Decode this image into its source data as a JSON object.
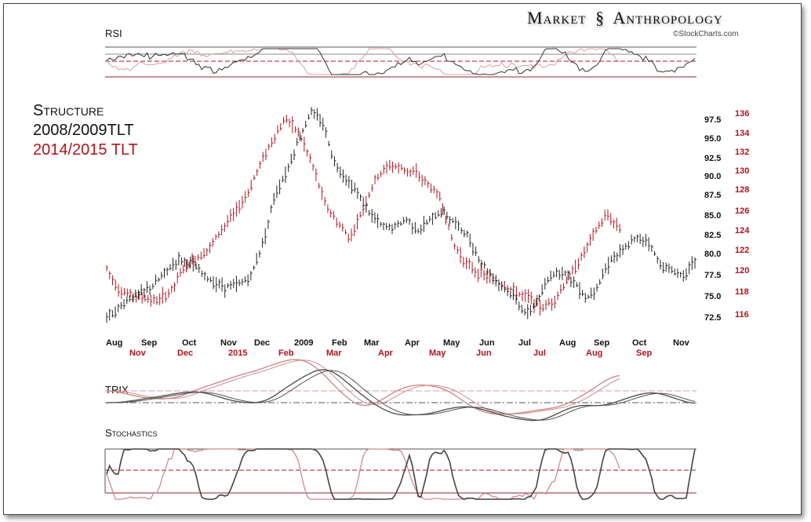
{
  "brand": {
    "title_left": "Market",
    "title_right": "Anthropology",
    "logo_icon": "dna-helix-icon",
    "copyright": "©StockCharts.com"
  },
  "legend": {
    "line1": "Structure",
    "line2": "2008/2009TLT",
    "line3": "2014/2015 TLT"
  },
  "panels": {
    "rsi": "RSI",
    "trix": "TRIX",
    "stoch": "Stochastics"
  },
  "colors": {
    "series_2008": "#222222",
    "series_2014": "#b0141c",
    "grid": "#555555"
  },
  "chart_data": {
    "type": "bar",
    "title": "Structure 2008/2009TLT vs 2014/2015 TLT",
    "x_ticks_2008": [
      "Aug",
      "Sep",
      "Oct",
      "Nov",
      "Dec",
      "2009",
      "Feb",
      "Mar",
      "Apr",
      "May",
      "Jun",
      "Jul",
      "Aug",
      "Sep",
      "Oct",
      "Nov"
    ],
    "x_ticks_2014": [
      "Nov",
      "Dec",
      "2015",
      "Feb",
      "Mar",
      "Apr",
      "May",
      "Jun",
      "Jul",
      "Aug",
      "Sep"
    ],
    "y_ticks_2008": [
      "97.5",
      "95.0",
      "92.5",
      "90.0",
      "87.5",
      "85.0",
      "82.5",
      "80.0",
      "77.5",
      "75.0",
      "72.5"
    ],
    "y_ticks_2014": [
      "136",
      "134",
      "132",
      "130",
      "128",
      "126",
      "124",
      "122",
      "120",
      "118",
      "116"
    ],
    "ylim_2008": [
      71.5,
      99.5
    ],
    "ylim_2014": [
      115,
      137
    ],
    "series": [
      {
        "name": "2008/2009 TLT",
        "axis": "left",
        "values": [
          72.8,
          73.8,
          75.2,
          75.8,
          76.8,
          78.5,
          80,
          79.5,
          78,
          77,
          76.5,
          76.8,
          77.8,
          82,
          88,
          91,
          95,
          98.5,
          97,
          92,
          90,
          88,
          85.5,
          84,
          84,
          85,
          83.5,
          85,
          86,
          84.5,
          83,
          80,
          78,
          76.5,
          75,
          73,
          75,
          78,
          78.5,
          77,
          75,
          77,
          80,
          81,
          82.5,
          82.5,
          79.5,
          78.5,
          78,
          79.5
        ]
      },
      {
        "name": "2014/2015 TLT",
        "axis": "right",
        "values": [
          120.5,
          118.2,
          117.8,
          117.5,
          117.2,
          118.2,
          120.5,
          121.5,
          122.5,
          124.5,
          126,
          128,
          131,
          133.5,
          135.5,
          134,
          131,
          127,
          125,
          123.5,
          126.5,
          129.5,
          130.8,
          130.5,
          130,
          129,
          127.5,
          123,
          121,
          120,
          119.5,
          118.8,
          118,
          117.5,
          116.5,
          117.5,
          119.5,
          121.5,
          124,
          125.8,
          124.5
        ]
      }
    ],
    "indicators": {
      "rsi_levels": [
        70,
        50,
        30
      ],
      "trix_zero_line": 0,
      "stochastics_levels": [
        80,
        50,
        20
      ]
    }
  }
}
